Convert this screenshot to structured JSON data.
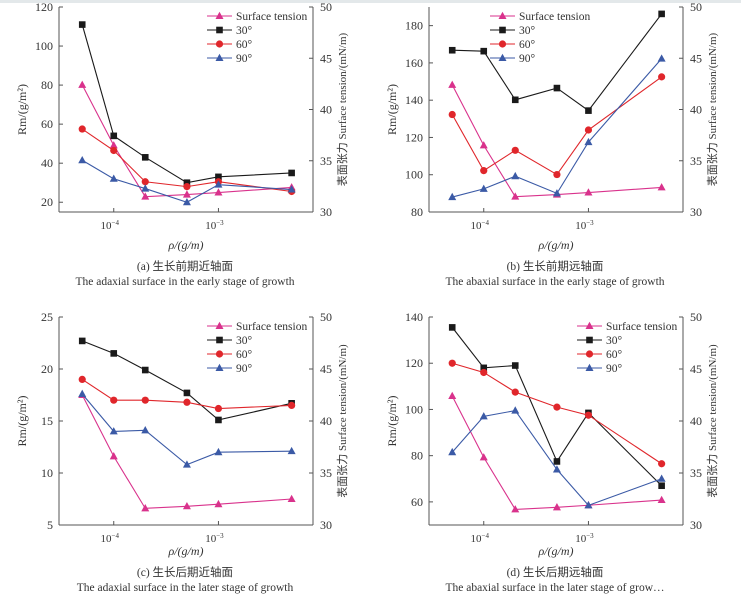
{
  "colors": {
    "Surface tension": "#d9328c",
    "30°": "#1a1a1a",
    "60°": "#e0262b",
    "90°": "#3b5aa6",
    "axis": "#555555"
  },
  "chart_data": [
    {
      "type": "line",
      "caption_cn": "(a) 生长前期近轴面",
      "caption_en": "The adaxial surface in the early stage of growth",
      "xlabel": "ρ/(g/m)",
      "ylabel": "Rm/(g/m²)",
      "y2label": "表面张力 Surface tension/(mN/m)",
      "xscale": "log",
      "xlim": [
        3e-05,
        0.008
      ],
      "xticks": [
        "10^-4",
        "10^-3"
      ],
      "ylim": [
        15,
        120
      ],
      "yticks": [
        20,
        40,
        60,
        80,
        100,
        120
      ],
      "y2lim": [
        30,
        50
      ],
      "y2ticks": [
        30,
        35,
        40,
        45,
        50
      ],
      "legend": "top-right",
      "x": [
        5e-05,
        0.0001,
        0.0002,
        0.0005,
        0.001,
        0.005
      ],
      "series": [
        {
          "name": "Surface tension",
          "axis": "right",
          "marker": "triangle",
          "values": [
            42.4,
            36.5,
            31.5,
            31.7,
            31.9,
            32.4
          ]
        },
        {
          "name": "30°",
          "axis": "left",
          "marker": "square",
          "values": [
            111,
            54,
            43,
            30,
            33,
            35
          ]
        },
        {
          "name": "60°",
          "axis": "left",
          "marker": "circle",
          "values": [
            57.5,
            46.5,
            30.5,
            28,
            30.5,
            25.5
          ]
        },
        {
          "name": "90°",
          "axis": "left",
          "marker": "triangle",
          "values": [
            41.5,
            32,
            27,
            20,
            29,
            26.5
          ]
        }
      ]
    },
    {
      "type": "line",
      "caption_cn": "(b) 生长前期远轴面",
      "caption_en": "The abaxial surface in the early stage of growth",
      "xlabel": "ρ/(g/m)",
      "ylabel": "Rm/(g/m²)",
      "y2label": "表面张力 Surface tension/(mN/m)",
      "xscale": "log",
      "xlim": [
        3e-05,
        0.008
      ],
      "xticks": [
        "10^-4",
        "10^-3"
      ],
      "ylim": [
        80,
        190
      ],
      "yticks": [
        80,
        100,
        120,
        140,
        160,
        180
      ],
      "y2lim": [
        30,
        50
      ],
      "y2ticks": [
        30,
        35,
        40,
        45,
        50
      ],
      "legend": "top-center",
      "x": [
        5e-05,
        0.0001,
        0.0002,
        0.0005,
        0.001,
        0.005
      ],
      "series": [
        {
          "name": "Surface tension",
          "axis": "right",
          "marker": "triangle",
          "values": [
            42.4,
            36.5,
            31.5,
            31.7,
            31.9,
            32.4
          ]
        },
        {
          "name": "30°",
          "axis": "left",
          "marker": "square",
          "values": [
            166.8,
            166.3,
            140.2,
            146.5,
            134.4,
            186.3
          ]
        },
        {
          "name": "60°",
          "axis": "left",
          "marker": "circle",
          "values": [
            132.3,
            102.2,
            113.1,
            100.1,
            124,
            152.5
          ]
        },
        {
          "name": "90°",
          "axis": "left",
          "marker": "triangle",
          "values": [
            88,
            92.4,
            99.2,
            90,
            117.5,
            162.3
          ]
        }
      ]
    },
    {
      "type": "line",
      "caption_cn": "(c) 生长后期近轴面",
      "caption_en": "The adaxial surface in the later stage of growth",
      "xlabel": "ρ/(g/m)",
      "ylabel": "Rm/(g/m²)",
      "y2label": "表面张力 Surface tension/(mN/m)",
      "xscale": "log",
      "xlim": [
        3e-05,
        0.008
      ],
      "xticks": [
        "10^-4",
        "10^-3"
      ],
      "ylim": [
        5,
        25
      ],
      "yticks": [
        5,
        10,
        15,
        20,
        25
      ],
      "y2lim": [
        30,
        50
      ],
      "y2ticks": [
        30,
        35,
        40,
        45,
        50
      ],
      "legend": "top-right",
      "x": [
        5e-05,
        0.0001,
        0.0002,
        0.0005,
        0.001,
        0.005
      ],
      "series": [
        {
          "name": "Surface tension",
          "axis": "right",
          "marker": "triangle",
          "values": [
            42.5,
            36.6,
            31.6,
            31.8,
            32.0,
            32.5
          ]
        },
        {
          "name": "30°",
          "axis": "left",
          "marker": "square",
          "values": [
            22.7,
            21.5,
            19.9,
            17.7,
            15.1,
            16.7
          ]
        },
        {
          "name": "60°",
          "axis": "left",
          "marker": "circle",
          "values": [
            19,
            17,
            17,
            16.8,
            16.2,
            16.5
          ]
        },
        {
          "name": "90°",
          "axis": "left",
          "marker": "triangle",
          "values": [
            17.6,
            14,
            14.1,
            10.8,
            12,
            12.1
          ]
        }
      ]
    },
    {
      "type": "line",
      "caption_cn": "(d) 生长后期远轴面",
      "caption_en": "The abaxial surface in the later stage of grow…",
      "xlabel": "ρ/(g/m)",
      "ylabel": "Rm/(g/m²)",
      "y2label": "表面张力 Surface tension/(mN/m)",
      "xscale": "log",
      "xlim": [
        3e-05,
        0.008
      ],
      "xticks": [
        "10^-4",
        "10^-3"
      ],
      "ylim": [
        50,
        140
      ],
      "yticks": [
        60,
        80,
        100,
        120,
        140
      ],
      "y2lim": [
        30,
        50
      ],
      "y2ticks": [
        30,
        35,
        40,
        45,
        50
      ],
      "legend": "top-right",
      "x": [
        5e-05,
        0.0001,
        0.0002,
        0.0005,
        0.001,
        0.005
      ],
      "series": [
        {
          "name": "Surface tension",
          "axis": "right",
          "marker": "triangle",
          "values": [
            42.4,
            36.5,
            31.5,
            31.7,
            31.9,
            32.4
          ]
        },
        {
          "name": "30°",
          "axis": "left",
          "marker": "square",
          "values": [
            135.5,
            118,
            119,
            77.5,
            98.5,
            67
          ]
        },
        {
          "name": "60°",
          "axis": "left",
          "marker": "circle",
          "values": [
            120,
            116,
            107.5,
            101,
            97.5,
            76.5
          ]
        },
        {
          "name": "90°",
          "axis": "left",
          "marker": "triangle",
          "values": [
            81.5,
            97,
            99.5,
            74,
            58.5,
            70
          ]
        }
      ]
    }
  ]
}
